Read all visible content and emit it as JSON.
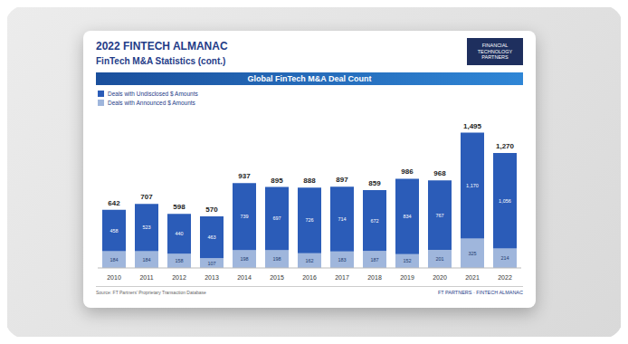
{
  "page": {
    "header": "2022 FINTECH ALMANAC",
    "subtitle": "FinTech M&A Statistics (cont.)",
    "logo": "FINANCIAL TECHNOLOGY PARTNERS",
    "source": "Source: FT Partners' Proprietary Transaction Database",
    "footer": "FT PARTNERS · FINTECH ALMANAC"
  },
  "chart_data": {
    "type": "bar",
    "title": "Global FinTech M&A Deal Count",
    "categories": [
      "2010",
      "2011",
      "2012",
      "2013",
      "2014",
      "2015",
      "2016",
      "2017",
      "2018",
      "2019",
      "2020",
      "2021",
      "2022"
    ],
    "series": [
      {
        "name": "Deals with Undisclosed $ Amounts",
        "color": "#2b5cb8",
        "values": [
          458,
          523,
          440,
          463,
          739,
          697,
          726,
          714,
          672,
          834,
          767,
          1170,
          1056
        ],
        "value_labels": [
          "458",
          "523",
          "440",
          "463",
          "739",
          "697",
          "726",
          "714",
          "672",
          "834",
          "767",
          "1,170",
          "1,056"
        ]
      },
      {
        "name": "Deals with Announced $ Amounts",
        "color": "#9fb6dc",
        "values": [
          184,
          184,
          158,
          107,
          198,
          198,
          162,
          183,
          187,
          152,
          201,
          325,
          214
        ]
      }
    ],
    "totals": [
      642,
      707,
      598,
      570,
      937,
      895,
      888,
      897,
      859,
      986,
      968,
      1495,
      1270
    ],
    "total_labels": [
      "642",
      "707",
      "598",
      "570",
      "937",
      "895",
      "888",
      "897",
      "859",
      "986",
      "968",
      "1,495",
      "1,270"
    ],
    "stacked": true,
    "data_labels": true,
    "tick_labels": "x",
    "grid": false,
    "legend": "top-left",
    "ylim": [
      0,
      1600
    ]
  }
}
